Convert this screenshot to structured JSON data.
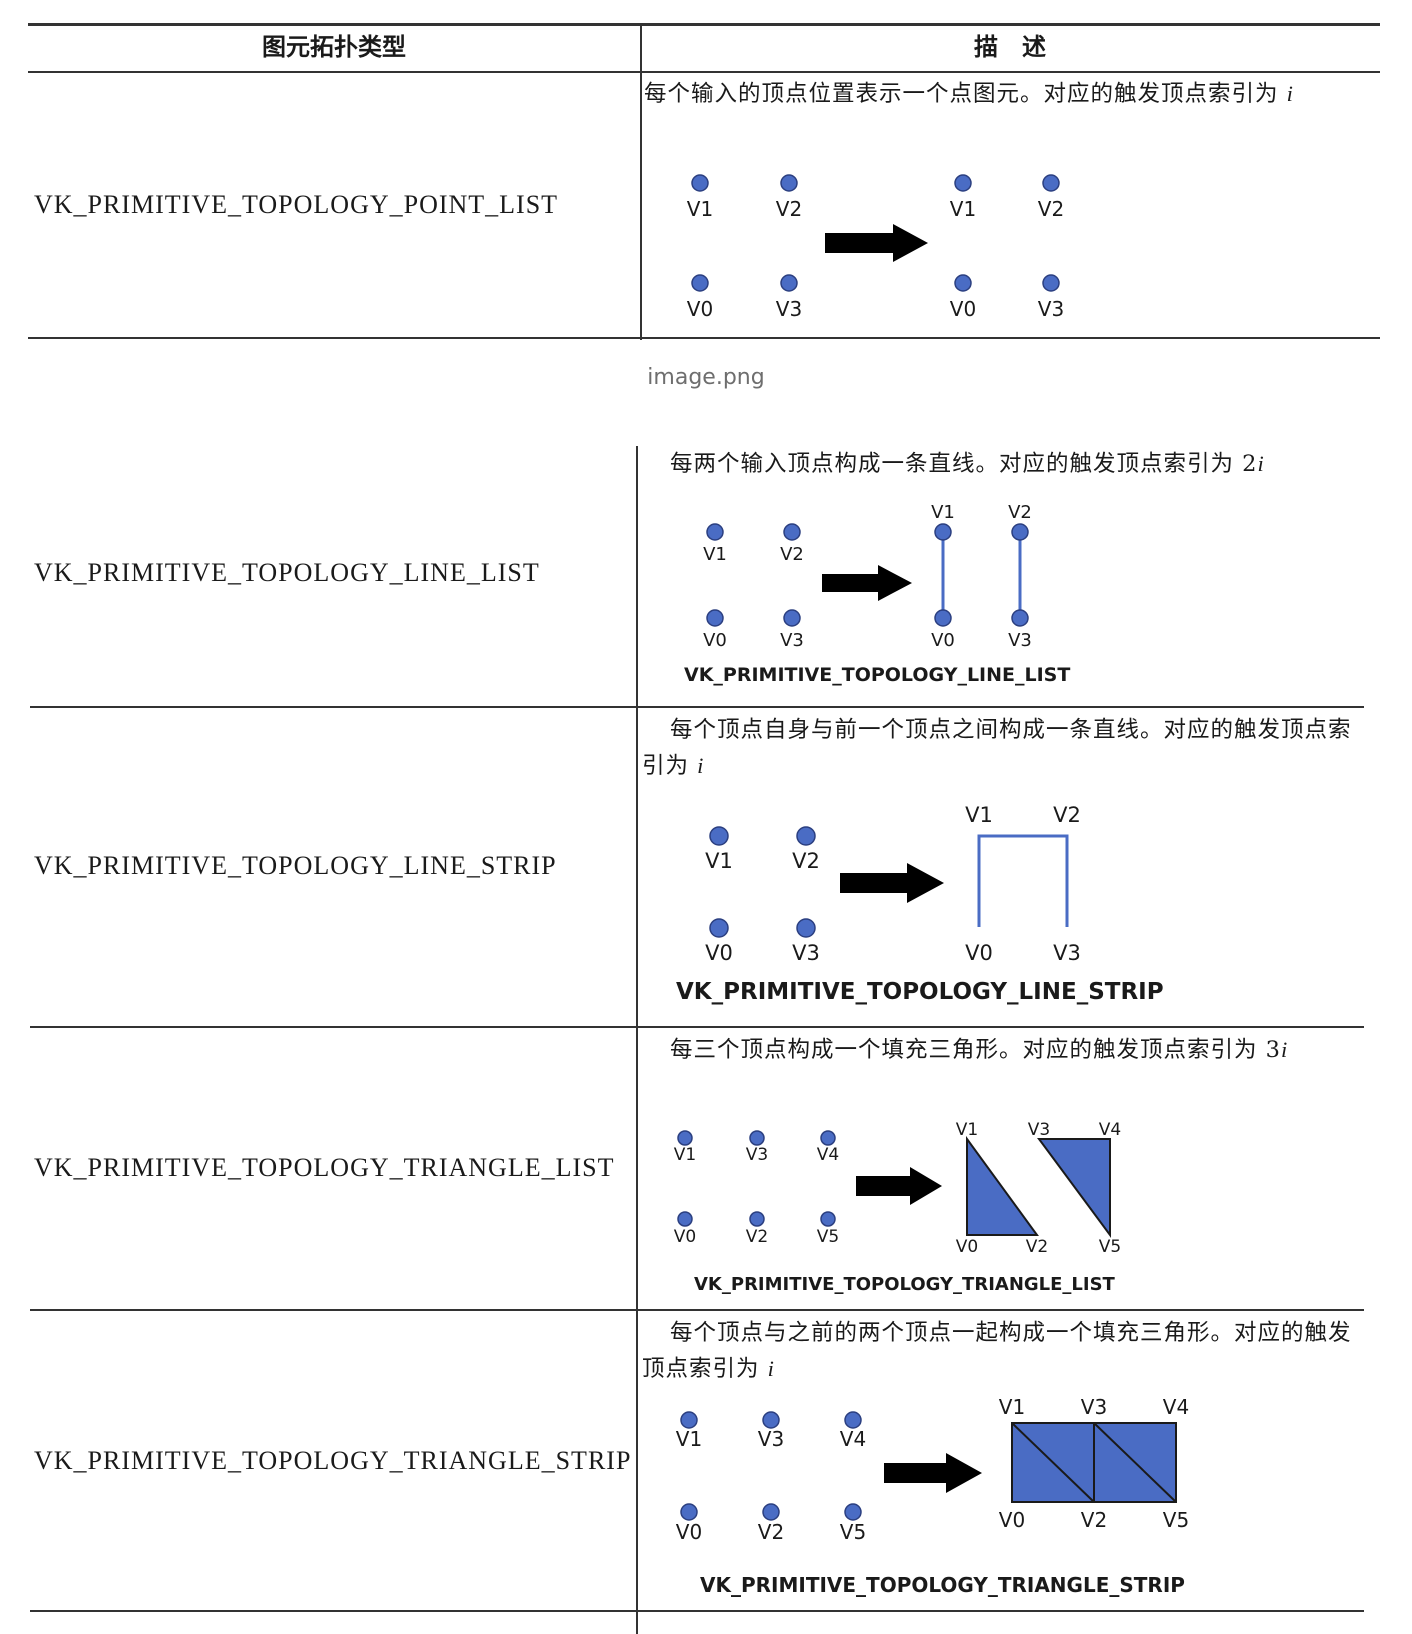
{
  "table": {
    "headers": {
      "type": "图元拓扑类型",
      "description": "描　述"
    },
    "file_caption": "image.png",
    "rows": [
      {
        "type": "VK_PRIMITIVE_TOPOLOGY_POINT_LIST",
        "desc_text": "每个输入的顶点位置表示一个点图元。对应的触发顶点索引为 ",
        "desc_var": "i",
        "diagram_caption": "",
        "input_labels": [
          "V1",
          "V2",
          "V0",
          "V3"
        ],
        "output_labels": [
          "V1",
          "V2",
          "V0",
          "V3"
        ]
      },
      {
        "type": "VK_PRIMITIVE_TOPOLOGY_LINE_LIST",
        "desc_text": "每两个输入顶点构成一条直线。对应的触发顶点索引为 2",
        "desc_var": "i",
        "diagram_caption": "VK_PRIMITIVE_TOPOLOGY_LINE_LIST",
        "input_labels": [
          "V1",
          "V2",
          "V0",
          "V3"
        ],
        "output_labels": [
          "V1",
          "V2",
          "V0",
          "V3"
        ]
      },
      {
        "type": "VK_PRIMITIVE_TOPOLOGY_LINE_STRIP",
        "desc_text": "每个顶点自身与前一个顶点之间构成一条直线。对应的触发顶点索引为 ",
        "desc_var": "i",
        "diagram_caption": "VK_PRIMITIVE_TOPOLOGY_LINE_STRIP",
        "input_labels": [
          "V1",
          "V2",
          "V0",
          "V3"
        ],
        "output_labels": [
          "V1",
          "V2",
          "V0",
          "V3"
        ]
      },
      {
        "type": "VK_PRIMITIVE_TOPOLOGY_TRIANGLE_LIST",
        "desc_text": "每三个顶点构成一个填充三角形。对应的触发顶点索引为 3",
        "desc_var": "i",
        "diagram_caption": "VK_PRIMITIVE_TOPOLOGY_TRIANGLE_LIST",
        "input_labels": [
          "V1",
          "V3",
          "V4",
          "V0",
          "V2",
          "V5"
        ],
        "output_labels": [
          "V1",
          "V3",
          "V4",
          "V0",
          "V2",
          "V5"
        ]
      },
      {
        "type": "VK_PRIMITIVE_TOPOLOGY_TRIANGLE_STRIP",
        "desc_text": "每个顶点与之前的两个顶点一起构成一个填充三角形。对应的触发顶点索引为 ",
        "desc_var": "i",
        "diagram_caption": "VK_PRIMITIVE_TOPOLOGY_TRIANGLE_STRIP",
        "input_labels": [
          "V1",
          "V3",
          "V4",
          "V0",
          "V2",
          "V5"
        ],
        "output_labels": [
          "V1",
          "V3",
          "V4",
          "V0",
          "V2",
          "V5"
        ]
      }
    ]
  },
  "colors": {
    "vertex_fill": "#4a6cc4",
    "vertex_stroke": "#2b3f80",
    "arrow": "#000000",
    "grid": "#333333"
  }
}
